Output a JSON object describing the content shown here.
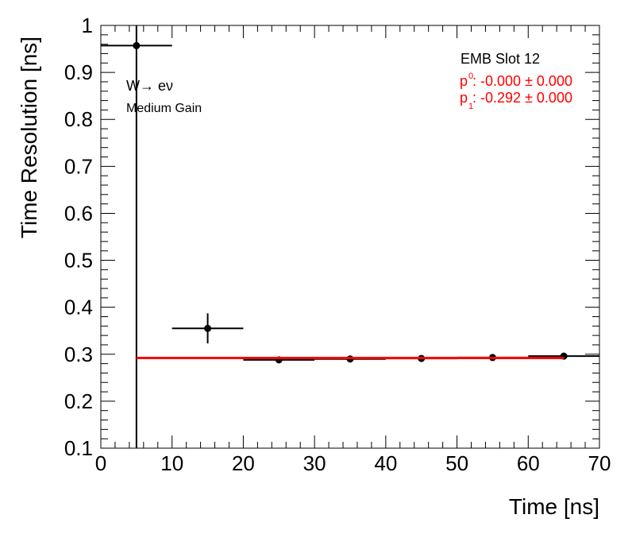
{
  "chart_data": {
    "type": "scatter",
    "xlabel": "Time [ns]",
    "ylabel": "Time Resolution [ns]",
    "xlim": [
      0,
      70
    ],
    "ylim": [
      0.1,
      1.0
    ],
    "x_ticks": [
      0,
      10,
      20,
      30,
      40,
      50,
      60,
      70
    ],
    "y_ticks": [
      0.1,
      0.2,
      0.3,
      0.4,
      0.5,
      0.6,
      0.7,
      0.8,
      0.9,
      1.0
    ],
    "x_tick_labels": [
      "0",
      "10",
      "20",
      "30",
      "40",
      "50",
      "60",
      "70"
    ],
    "y_tick_labels": [
      "0.1",
      "0.2",
      "0.3",
      "0.4",
      "0.5",
      "0.6",
      "0.7",
      "0.8",
      "0.9",
      "1"
    ],
    "grid": false,
    "series": [
      {
        "color": "#000000",
        "points": [
          {
            "x": 5,
            "xerr": 5,
            "y": 0.957,
            "yerr_low": 0.857,
            "yerr_high": 0.043
          },
          {
            "x": 15,
            "xerr": 5,
            "y": 0.355,
            "yerr": 0.032
          },
          {
            "x": 25,
            "xerr": 5,
            "y": 0.288,
            "yerr": 0.003
          },
          {
            "x": 35,
            "xerr": 5,
            "y": 0.29,
            "yerr": 0.003
          },
          {
            "x": 45,
            "xerr": 5,
            "y": 0.291,
            "yerr": 0.003
          },
          {
            "x": 55,
            "xerr": 5,
            "y": 0.293,
            "yerr": 0.003
          },
          {
            "x": 65,
            "xerr": 5,
            "y": 0.296,
            "yerr": 0.003
          }
        ]
      }
    ],
    "fit": {
      "type": "line",
      "color": "#ff0000",
      "x_range": [
        5,
        65
      ],
      "y_value": 0.292
    },
    "annotations": {
      "process_label": "W→ eν",
      "gain_label": "Medium Gain",
      "slot_label": "EMB Slot 12",
      "p0_label": "p",
      "p0_index": "0",
      "p0_text": ": -0.000 ± 0.000",
      "p1_label": "p",
      "p1_index": "1",
      "p1_text": ": -0.292 ± 0.000"
    },
    "colors": {
      "axis": "#000000",
      "text": "#000000",
      "fit": "#ff0000"
    }
  }
}
